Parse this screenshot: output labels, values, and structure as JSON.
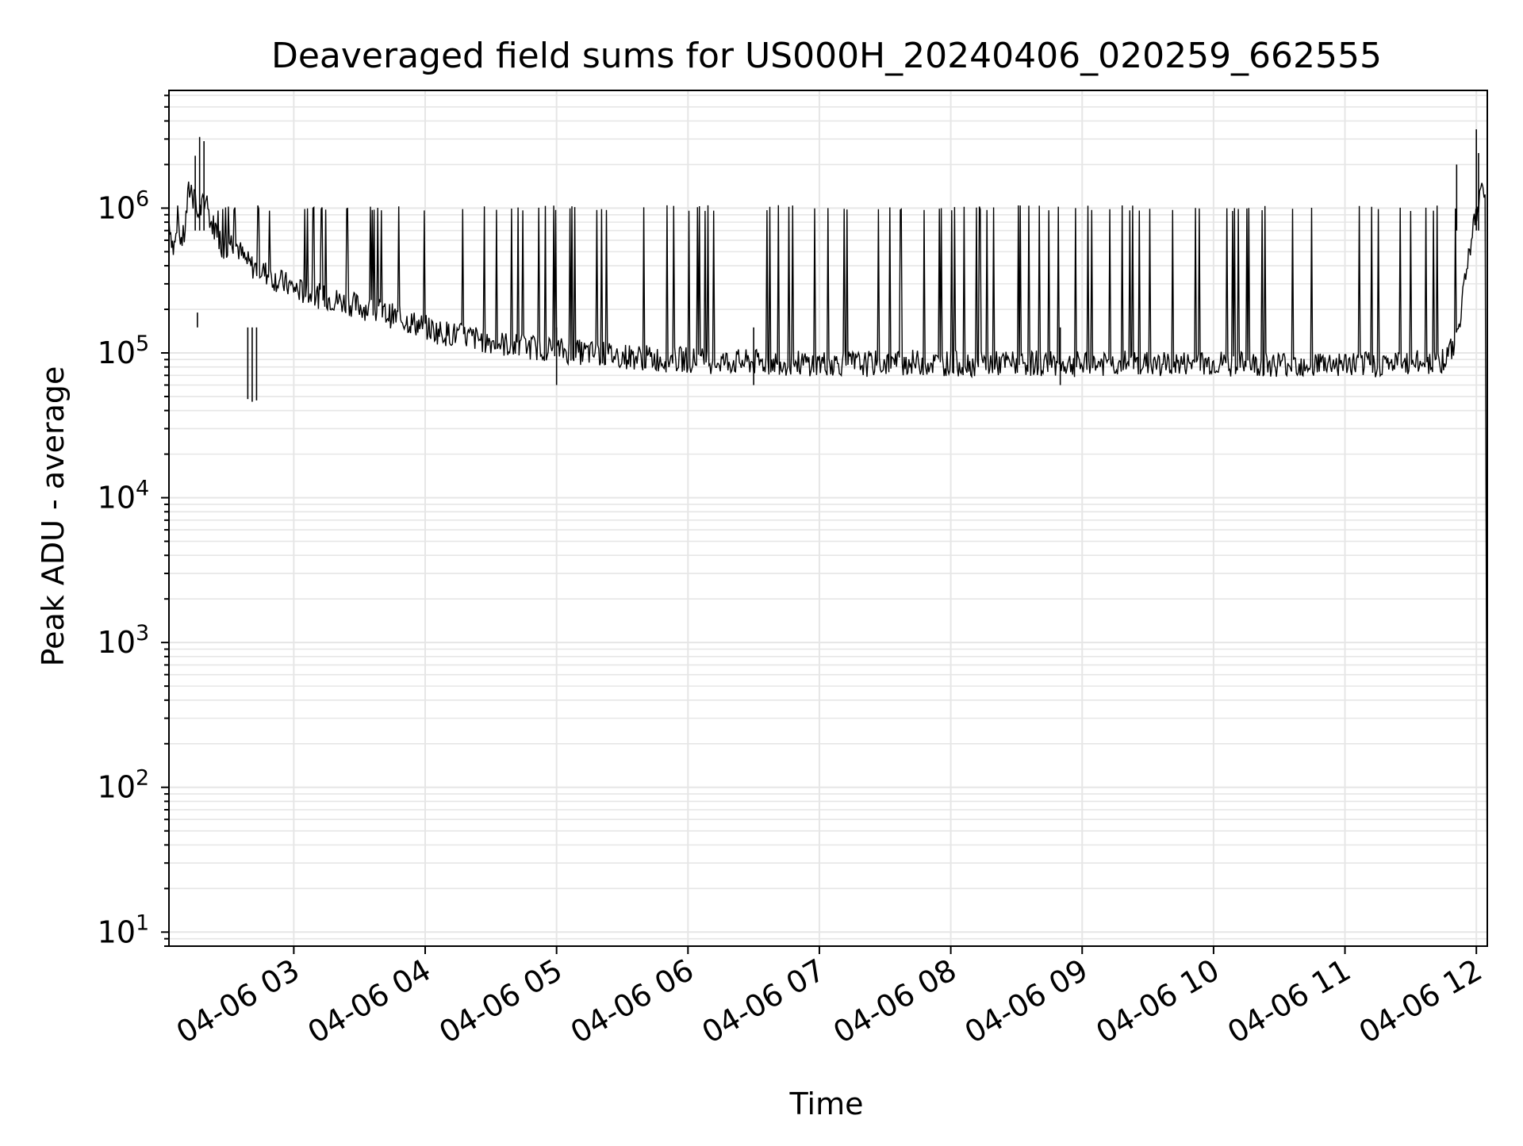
{
  "chart_data": {
    "type": "line",
    "title": "Deaveraged field sums for US000H_20240406_020259_662555",
    "xlabel": "Time",
    "ylabel": "Peak ADU - average",
    "yscale": "log",
    "grid": true,
    "ylim": [
      8,
      6500000
    ],
    "xlim": [
      "2024-04-06 02:03",
      "2024-04-06 12:05"
    ],
    "x_ticks": [
      {
        "label": "04-06 03",
        "time": "2024-04-06 03:00"
      },
      {
        "label": "04-06 04",
        "time": "2024-04-06 04:00"
      },
      {
        "label": "04-06 05",
        "time": "2024-04-06 05:00"
      },
      {
        "label": "04-06 06",
        "time": "2024-04-06 06:00"
      },
      {
        "label": "04-06 07",
        "time": "2024-04-06 07:00"
      },
      {
        "label": "04-06 08",
        "time": "2024-04-06 08:00"
      },
      {
        "label": "04-06 09",
        "time": "2024-04-06 09:00"
      },
      {
        "label": "04-06 10",
        "time": "2024-04-06 10:00"
      },
      {
        "label": "04-06 11",
        "time": "2024-04-06 11:00"
      },
      {
        "label": "04-06 12",
        "time": "2024-04-06 12:00"
      }
    ],
    "y_ticks": [
      {
        "base": "10",
        "exp": "1",
        "value": 10
      },
      {
        "base": "10",
        "exp": "2",
        "value": 100
      },
      {
        "base": "10",
        "exp": "3",
        "value": 1000
      },
      {
        "base": "10",
        "exp": "4",
        "value": 10000
      },
      {
        "base": "10",
        "exp": "5",
        "value": 100000
      },
      {
        "base": "10",
        "exp": "6",
        "value": 1000000
      }
    ],
    "series_color": "#000000",
    "series": [
      {
        "x": [
          "2024-04-06 02:03",
          "2024-04-06 02:05",
          "2024-04-06 02:07",
          "2024-04-06 02:09",
          "2024-04-06 02:10",
          "2024-04-06 02:12",
          "2024-04-06 02:14",
          "2024-04-06 02:15",
          "2024-04-06 02:16",
          "2024-04-06 02:18",
          "2024-04-06 02:20",
          "2024-04-06 02:22",
          "2024-04-06 02:25",
          "2024-04-06 02:28",
          "2024-04-06 02:31",
          "2024-04-06 02:34",
          "2024-04-06 02:37",
          "2024-04-06 02:40",
          "2024-04-06 02:44",
          "2024-04-06 02:48",
          "2024-04-06 02:52",
          "2024-04-06 02:56",
          "2024-04-06 03:00",
          "2024-04-06 03:05",
          "2024-04-06 03:10",
          "2024-04-06 03:15",
          "2024-04-06 03:20",
          "2024-04-06 03:25",
          "2024-04-06 03:30",
          "2024-04-06 03:35",
          "2024-04-06 03:40",
          "2024-04-06 03:45",
          "2024-04-06 03:50",
          "2024-04-06 03:55",
          "2024-04-06 04:00",
          "2024-04-06 04:06",
          "2024-04-06 04:12",
          "2024-04-06 04:18",
          "2024-04-06 04:24",
          "2024-04-06 04:30",
          "2024-04-06 04:36",
          "2024-04-06 04:42",
          "2024-04-06 04:48",
          "2024-04-06 04:54",
          "2024-04-06 05:00",
          "2024-04-06 05:07",
          "2024-04-06 05:14",
          "2024-04-06 05:21",
          "2024-04-06 05:28",
          "2024-04-06 05:35",
          "2024-04-06 05:42",
          "2024-04-06 05:50",
          "2024-04-06 06:00",
          "2024-04-06 06:10",
          "2024-04-06 06:20",
          "2024-04-06 06:30",
          "2024-04-06 06:40",
          "2024-04-06 06:50",
          "2024-04-06 07:00",
          "2024-04-06 07:10",
          "2024-04-06 07:20",
          "2024-04-06 07:30",
          "2024-04-06 07:40",
          "2024-04-06 07:50",
          "2024-04-06 08:00",
          "2024-04-06 08:10",
          "2024-04-06 08:20",
          "2024-04-06 08:30",
          "2024-04-06 08:40",
          "2024-04-06 08:50",
          "2024-04-06 09:00",
          "2024-04-06 09:10",
          "2024-04-06 09:20",
          "2024-04-06 09:30",
          "2024-04-06 09:40",
          "2024-04-06 09:50",
          "2024-04-06 10:00",
          "2024-04-06 10:10",
          "2024-04-06 10:20",
          "2024-04-06 10:30",
          "2024-04-06 10:40",
          "2024-04-06 10:50",
          "2024-04-06 11:00",
          "2024-04-06 11:10",
          "2024-04-06 11:20",
          "2024-04-06 11:30",
          "2024-04-06 11:40",
          "2024-04-06 11:45",
          "2024-04-06 11:50",
          "2024-04-06 11:53",
          "2024-04-06 11:56",
          "2024-04-06 11:59",
          "2024-04-06 12:01",
          "2024-04-06 12:02",
          "2024-04-06 12:03",
          "2024-04-06 12:04",
          "2024-04-06 12:05"
        ],
        "y": [
          850000,
          520000,
          700000,
          600000,
          650000,
          1300000,
          1400000,
          1100000,
          900000,
          1000000,
          1200000,
          800000,
          700000,
          500000,
          600000,
          550000,
          450000,
          400000,
          380000,
          350000,
          320000,
          300000,
          280000,
          260000,
          250000,
          240000,
          230000,
          220000,
          210000,
          200000,
          190000,
          180000,
          170000,
          160000,
          150000,
          140000,
          135000,
          130000,
          125000,
          120000,
          115000,
          112000,
          110000,
          108000,
          105000,
          102000,
          100000,
          98000,
          96000,
          94000,
          92000,
          90000,
          90000,
          88000,
          87000,
          86000,
          86000,
          85000,
          85000,
          85000,
          84000,
          85000,
          86000,
          85000,
          85000,
          84000,
          84000,
          85000,
          85000,
          84000,
          83000,
          84000,
          85000,
          84000,
          83000,
          84000,
          85000,
          84000,
          83000,
          84000,
          84000,
          85000,
          84000,
          83000,
          84000,
          85000,
          86000,
          90000,
          110000,
          200000,
          450000,
          800000,
          1000000,
          1200000,
          1500000,
          1300000,
          10
        ]
      }
    ],
    "spikes": [
      {
        "time": "2024-04-06 02:15",
        "value": 2300000
      },
      {
        "time": "2024-04-06 02:17",
        "value": 3100000
      },
      {
        "time": "2024-04-06 02:19",
        "value": 2900000
      },
      {
        "time": "2024-04-06 11:51",
        "value": 2000000
      },
      {
        "time": "2024-04-06 12:00",
        "value": 3500000
      },
      {
        "time": "2024-04-06 12:01",
        "value": 2400000
      }
    ],
    "dips": [
      {
        "time": "2024-04-06 02:16",
        "value": 190000
      },
      {
        "time": "2024-04-06 02:39",
        "value": 48000
      },
      {
        "time": "2024-04-06 02:41",
        "value": 46000
      },
      {
        "time": "2024-04-06 02:43",
        "value": 47000
      },
      {
        "time": "2024-04-06 05:00",
        "value": 60000
      },
      {
        "time": "2024-04-06 06:30",
        "value": 60000
      },
      {
        "time": "2024-04-06 08:50",
        "value": 60000
      }
    ]
  }
}
